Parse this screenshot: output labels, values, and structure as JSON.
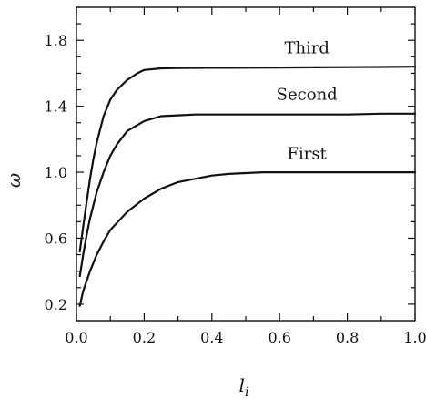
{
  "chart_data": {
    "type": "line",
    "xlabel": "l",
    "xlabel_sub": "i",
    "ylabel": "ω",
    "xlim": [
      0.0,
      1.0
    ],
    "ylim": [
      0.1,
      2.0
    ],
    "x_ticks": [
      0.0,
      0.2,
      0.4,
      0.6,
      0.8,
      1.0
    ],
    "x_tick_labels": [
      "0.0",
      "0.2",
      "0.4",
      "0.6",
      "0.8",
      "1.0"
    ],
    "y_ticks": [
      0.2,
      0.6,
      1.0,
      1.4,
      1.8
    ],
    "y_tick_labels": [
      "0.2",
      "0.6",
      "1.0",
      "1.4",
      "1.8"
    ],
    "grid": false,
    "series": [
      {
        "name": "First",
        "label_at": [
          0.6,
          1.08
        ],
        "x": [
          0.01,
          0.02,
          0.04,
          0.06,
          0.08,
          0.1,
          0.15,
          0.2,
          0.25,
          0.3,
          0.35,
          0.4,
          0.45,
          0.5,
          0.55,
          0.6,
          0.7,
          0.8,
          0.9,
          1.0
        ],
        "values": [
          0.19,
          0.28,
          0.4,
          0.5,
          0.58,
          0.65,
          0.76,
          0.84,
          0.9,
          0.94,
          0.96,
          0.98,
          0.99,
          0.995,
          1.0,
          1.0,
          1.0,
          1.0,
          1.0,
          1.0
        ]
      },
      {
        "name": "Second",
        "label_at": [
          0.6,
          1.44
        ],
        "x": [
          0.01,
          0.02,
          0.03,
          0.04,
          0.06,
          0.08,
          0.1,
          0.12,
          0.15,
          0.2,
          0.25,
          0.3,
          0.35,
          0.4,
          0.5,
          0.6,
          0.7,
          0.8,
          0.9,
          1.0
        ],
        "values": [
          0.37,
          0.5,
          0.62,
          0.72,
          0.88,
          1.0,
          1.1,
          1.17,
          1.25,
          1.31,
          1.34,
          1.345,
          1.35,
          1.35,
          1.35,
          1.35,
          1.35,
          1.35,
          1.355,
          1.355
        ],
        "x_label_offset": 0
      },
      {
        "name": "Third",
        "label_at": [
          0.6,
          1.72
        ],
        "x": [
          0.01,
          0.02,
          0.03,
          0.04,
          0.05,
          0.06,
          0.08,
          0.1,
          0.12,
          0.15,
          0.18,
          0.2,
          0.25,
          0.3,
          0.4,
          0.5,
          0.6,
          0.7,
          0.8,
          0.9,
          1.0
        ],
        "values": [
          0.52,
          0.67,
          0.82,
          0.96,
          1.08,
          1.18,
          1.34,
          1.44,
          1.5,
          1.56,
          1.6,
          1.62,
          1.63,
          1.632,
          1.633,
          1.634,
          1.635,
          1.636,
          1.637,
          1.638,
          1.64
        ]
      }
    ]
  }
}
